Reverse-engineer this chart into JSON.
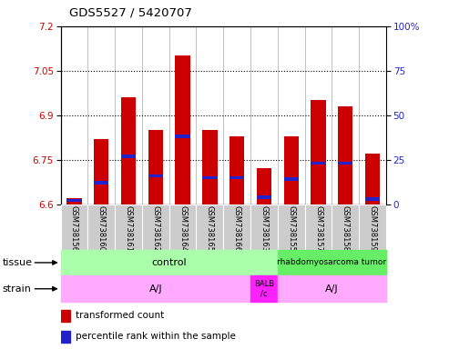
{
  "title": "GDS5527 / 5420707",
  "samples": [
    "GSM738156",
    "GSM738160",
    "GSM738161",
    "GSM738162",
    "GSM738164",
    "GSM738165",
    "GSM738166",
    "GSM738163",
    "GSM738155",
    "GSM738157",
    "GSM738158",
    "GSM738159"
  ],
  "transformed_count": [
    6.62,
    6.82,
    6.96,
    6.85,
    7.1,
    6.85,
    6.83,
    6.72,
    6.83,
    6.95,
    6.93,
    6.77
  ],
  "percentile_rank": [
    2,
    12,
    27,
    16,
    38,
    15,
    15,
    4,
    14,
    23,
    23,
    3
  ],
  "ymin": 6.6,
  "ymax": 7.2,
  "yticks": [
    6.6,
    6.75,
    6.9,
    7.05,
    7.2
  ],
  "right_yticks": [
    0,
    25,
    50,
    75,
    100
  ],
  "bar_color": "#cc0000",
  "percentile_color": "#2222cc",
  "tissue_control_color": "#aaffaa",
  "tissue_tumor_color": "#66ee66",
  "strain_aj_color": "#ffaaff",
  "strain_balb_color": "#ff22ff",
  "label_bg_color": "#cccccc",
  "ylabel_left_color": "#cc0000",
  "ylabel_right_color": "#2222cc"
}
